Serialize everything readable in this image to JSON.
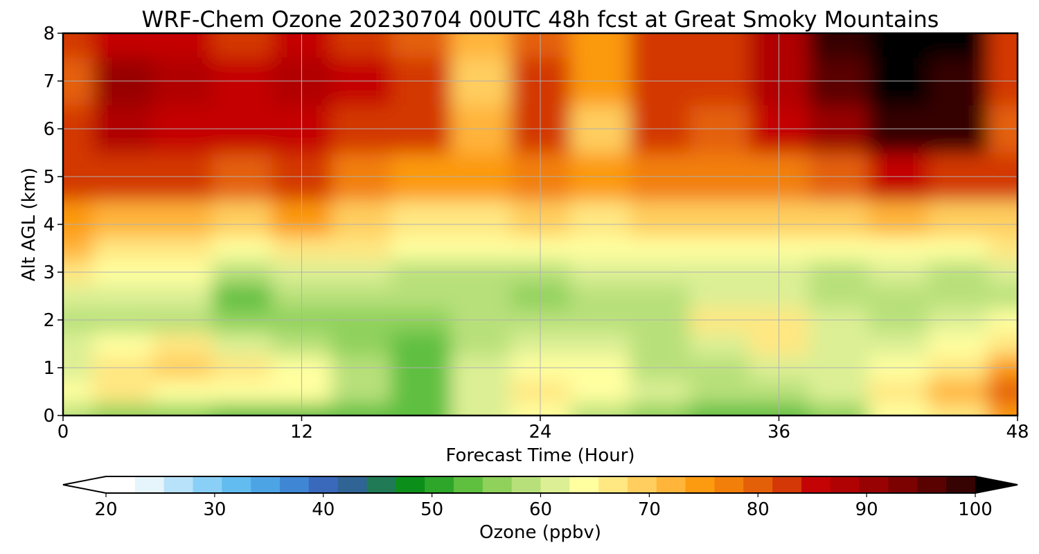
{
  "chart_data": {
    "type": "heatmap",
    "title": "WRF-Chem Ozone  20230704 00UTC 48h fcst at Great Smoky Mountains",
    "xlabel": "Forecast Time (Hour)",
    "ylabel": "Alt AGL (km)",
    "xlim": [
      0,
      48
    ],
    "ylim": [
      0,
      8
    ],
    "x_ticks": [
      "0",
      "12",
      "24",
      "36",
      "48"
    ],
    "y_ticks": [
      "0",
      "1",
      "2",
      "3",
      "4",
      "5",
      "6",
      "7",
      "8"
    ],
    "grid": true,
    "x": [
      0,
      3,
      6,
      9,
      12,
      15,
      18,
      21,
      24,
      27,
      30,
      33,
      36,
      39,
      42,
      45,
      48
    ],
    "y": [
      0,
      0.5,
      1,
      1.5,
      2,
      2.5,
      3,
      3.5,
      4,
      5,
      6,
      7,
      8
    ],
    "z": [
      [
        56,
        55,
        54,
        52,
        51,
        52,
        53,
        60,
        62,
        58,
        55,
        53,
        51,
        54,
        62,
        66,
        72
      ],
      [
        62,
        64,
        63,
        62,
        63,
        57,
        53,
        60,
        64,
        63,
        60,
        58,
        57,
        59,
        64,
        70,
        78
      ],
      [
        60,
        66,
        68,
        64,
        62,
        56,
        53,
        59,
        63,
        62,
        58,
        56,
        59,
        59,
        62,
        66,
        74
      ],
      [
        59,
        63,
        64,
        60,
        57,
        54,
        52,
        58,
        61,
        60,
        57,
        60,
        65,
        59,
        60,
        62,
        64
      ],
      [
        57,
        58,
        57,
        54,
        55,
        54,
        55,
        57,
        56,
        57,
        58,
        64,
        66,
        59,
        58,
        60,
        62
      ],
      [
        60,
        60,
        59,
        53,
        57,
        57,
        56,
        56,
        55,
        57,
        58,
        60,
        60,
        58,
        58,
        57,
        58
      ],
      [
        65,
        62,
        62,
        56,
        60,
        59,
        58,
        58,
        58,
        60,
        61,
        60,
        59,
        58,
        59,
        58,
        60
      ],
      [
        70,
        66,
        66,
        63,
        65,
        64,
        62,
        62,
        62,
        63,
        63,
        62,
        62,
        62,
        62,
        62,
        64
      ],
      [
        72,
        70,
        70,
        68,
        72,
        68,
        66,
        66,
        68,
        66,
        68,
        67,
        68,
        68,
        70,
        68,
        69
      ],
      [
        82,
        80,
        80,
        78,
        80,
        76,
        74,
        72,
        76,
        72,
        76,
        75,
        76,
        78,
        83,
        80,
        82
      ],
      [
        82,
        86,
        84,
        83,
        85,
        82,
        80,
        70,
        80,
        69,
        80,
        78,
        84,
        90,
        98,
        96,
        78
      ],
      [
        78,
        88,
        86,
        84,
        86,
        84,
        80,
        68,
        80,
        72,
        82,
        80,
        86,
        94,
        100,
        98,
        80
      ],
      [
        80,
        84,
        84,
        82,
        84,
        82,
        78,
        70,
        78,
        74,
        82,
        80,
        86,
        96,
        100,
        99,
        82
      ]
    ],
    "colorbar": {
      "label": "Ozone  (ppbv)",
      "min": 20,
      "max": 100,
      "ticks": [
        "20",
        "30",
        "40",
        "50",
        "60",
        "70",
        "80",
        "90",
        "100"
      ],
      "extend": "both",
      "colors": [
        "#ffffff",
        "#e6f4fc",
        "#b8e2fa",
        "#8ad0f6",
        "#62bcf0",
        "#4da4e4",
        "#3f86d4",
        "#3a68bb",
        "#2f6495",
        "#1f7a55",
        "#0b8f1a",
        "#2ea62a",
        "#5fbf3f",
        "#8fd15b",
        "#b8e07a",
        "#dcef94",
        "#ffffa0",
        "#ffe782",
        "#ffce5e",
        "#ffb43a",
        "#fc9a10",
        "#f27f0a",
        "#e46008",
        "#d33806",
        "#c40404",
        "#b00202",
        "#980202",
        "#7c0202",
        "#5a0202",
        "#360202",
        "#000000"
      ]
    }
  }
}
